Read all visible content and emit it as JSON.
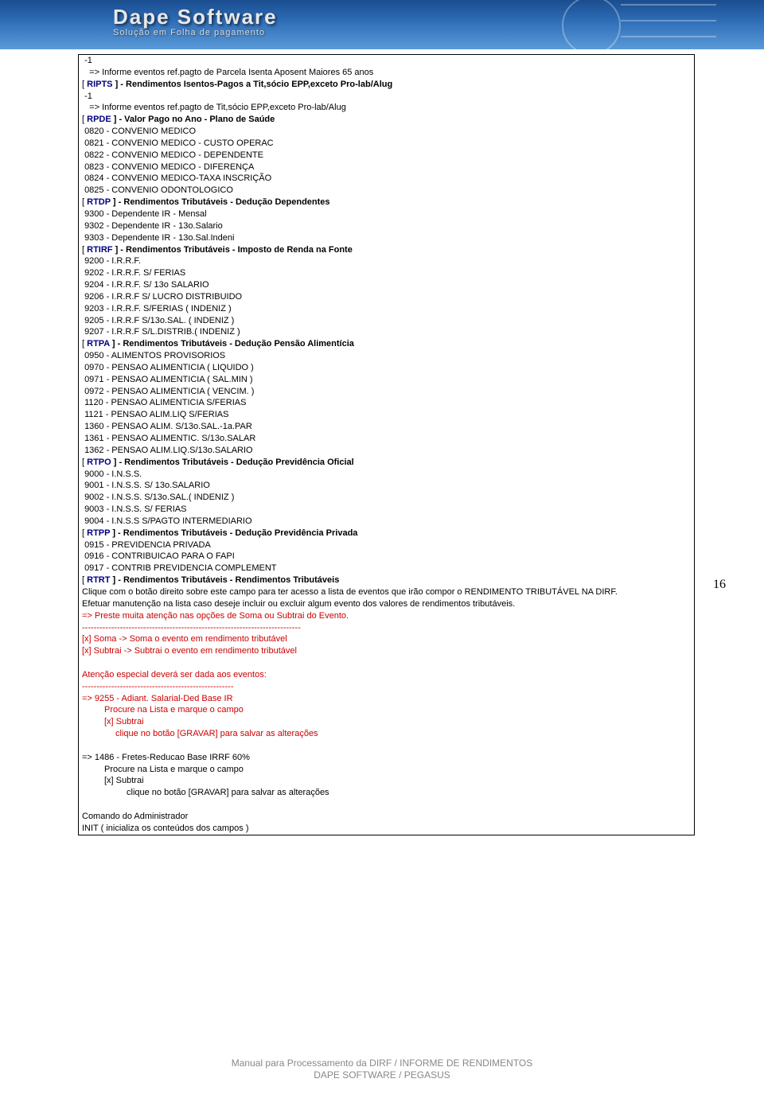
{
  "header": {
    "title": "Dape Software",
    "subtitle": "Solução em Folha de pagamento"
  },
  "pageNumber": "16",
  "footer": {
    "line1": "Manual para Processamento da DIRF / INFORME DE RENDIMENTOS",
    "line2": "DAPE SOFTWARE / PEGASUS"
  },
  "section1": {
    "l1": " -1",
    "l2": "   => Informe eventos ref.pagto de Parcela Isenta Aposent Maiores 65 anos",
    "l3a": "[ ",
    "l3b": "RIPTS",
    "l3c": " ] - Rendimentos Isentos-Pagos a Tit,sócio EPP,exceto Pro-lab/Alug",
    "l4": " -1",
    "l5": "   => Informe eventos ref.pagto de Tit,sócio EPP,exceto Pro-lab/Alug"
  },
  "section2": {
    "h1a": "[ ",
    "h1b": "RPDE",
    "h1c": " ] - Valor Pago no Ano - Plano de Saúde",
    "l1": " 0820 - CONVENIO MEDICO",
    "l2": " 0821 - CONVENIO MEDICO - CUSTO OPERAC",
    "l3": " 0822 - CONVENIO MEDICO - DEPENDENTE",
    "l4": " 0823 - CONVENIO MEDICO - DIFERENÇA",
    "l5": " 0824 - CONVENIO MEDICO-TAXA INSCRIÇÃO",
    "l6": " 0825 - CONVENIO ODONTOLOGICO"
  },
  "section3": {
    "h1a": "[ ",
    "h1b": "RTDP",
    "h1c": " ] - Rendimentos Tributáveis - Dedução Dependentes",
    "l1": " 9300 - Dependente IR - Mensal",
    "l2": " 9302 - Dependente IR - 13o.Salario",
    "l3": " 9303 - Dependente IR - 13o.Sal.Indeni"
  },
  "section4": {
    "h1a": "[ ",
    "h1b": "RTIRF",
    "h1c": " ] - Rendimentos Tributáveis - Imposto de Renda na Fonte",
    "l1": " 9200 - I.R.R.F.",
    "l2": " 9202 - I.R.R.F. S/ FERIAS",
    "l3": " 9204 - I.R.R.F. S/ 13o SALARIO",
    "l4": " 9206 - I.R.R.F S/ LUCRO DISTRIBUIDO",
    "l5": " 9203 - I.R.R.F. S/FERIAS ( INDENIZ )",
    "l6": " 9205 - I.R.R.F S/13o.SAL. ( INDENIZ )",
    "l7": " 9207 - I.R.R.F S/L.DISTRIB.( INDENIZ )"
  },
  "section5": {
    "h1a": "[ ",
    "h1b": "RTPA",
    "h1c": " ] - Rendimentos Tributáveis - Dedução Pensão Alimentícia",
    "l1": " 0950 - ALIMENTOS PROVISORIOS",
    "l2": " 0970 - PENSAO ALIMENTICIA ( LIQUIDO )",
    "l3": " 0971 - PENSAO ALIMENTICIA ( SAL.MIN )",
    "l4": " 0972 - PENSAO ALIMENTICIA ( VENCIM. )",
    "l5": " 1120 - PENSAO ALIMENTICIA S/FERIAS",
    "l6": " 1121 - PENSAO ALIM.LIQ S/FERIAS",
    "l7": " 1360 - PENSAO ALIM. S/13o.SAL.-1a.PAR",
    "l8": " 1361 - PENSAO ALIMENTIC. S/13o.SALAR",
    "l9": " 1362 - PENSAO ALIM.LIQ.S/13o.SALARIO"
  },
  "section6": {
    "h1a": "[ ",
    "h1b": "RTPO",
    "h1c": " ] - Rendimentos Tributáveis - Dedução Previdência Oficial",
    "l1": " 9000 - I.N.S.S.",
    "l2": " 9001 - I.N.S.S. S/ 13o.SALARIO",
    "l3": " 9002 - I.N.S.S. S/13o.SAL.( INDENIZ )",
    "l4": " 9003 - I.N.S.S. S/ FERIAS",
    "l5": " 9004 - I.N.S.S S/PAGTO INTERMEDIARIO"
  },
  "section7": {
    "h1a": "[ ",
    "h1b": "RTPP",
    "h1c": " ] - Rendimentos Tributáveis - Dedução Previdência Privada",
    "l1": " 0915 - PREVIDENCIA PRIVADA",
    "l2": " 0916 - CONTRIBUICAO PARA O FAPI",
    "l3": " 0917 - CONTRIB PREVIDENCIA COMPLEMENT"
  },
  "section8": {
    "h1a": "[ ",
    "h1b": "RTRT",
    "h1c": " ] - Rendimentos Tributáveis - Rendimentos Tributáveis",
    "p1": "Clique com o botão direito sobre este campo para ter acesso a lista de eventos que irão compor o RENDIMENTO TRIBUTÁVEL NA DIRF.",
    "p2": "Efetuar manutenção na lista caso deseje incluir ou excluir algum evento dos valores de rendimentos tributáveis.",
    "r1": "=> Preste muita atenção nas opções de Soma ou Subtrai do Evento.",
    "r2": "---------------------------------------------------------------------------",
    "r3": "[x] Soma -> Soma o evento em rendimento tributável",
    "r4": "[x] Subtrai -> Subtrai o evento em rendimento tributável",
    "r5": "Atenção especial deverá ser dada aos eventos:",
    "r6": "----------------------------------------------------",
    "r7": "=> 9255 - Adiant. Salarial-Ded Base IR",
    "r8": "Procure na Lista e marque o campo",
    "r9": "[x] Subtrai",
    "r10": "clique no botão [GRAVAR] para salvar as alterações",
    "b1": "=> 1486 - Fretes-Reducao Base IRRF 60%",
    "b2": "Procure na Lista e marque o campo",
    "b3": "[x] Subtrai",
    "b4": "clique no botão [GRAVAR] para salvar as alterações",
    "c1": "Comando do Administrador",
    "c2": "INIT ( inicializa os conteúdos dos campos )"
  }
}
